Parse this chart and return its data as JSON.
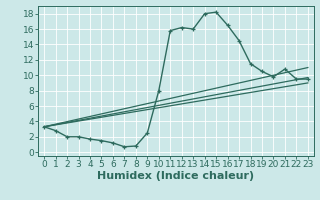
{
  "xlabel": "Humidex (Indice chaleur)",
  "ylabel": "",
  "bg_color": "#cce8e8",
  "line_color": "#2e6b5e",
  "xlim": [
    -0.5,
    23.5
  ],
  "ylim": [
    -0.5,
    19.0
  ],
  "xticks": [
    0,
    1,
    2,
    3,
    4,
    5,
    6,
    7,
    8,
    9,
    10,
    11,
    12,
    13,
    14,
    15,
    16,
    17,
    18,
    19,
    20,
    21,
    22,
    23
  ],
  "yticks": [
    0,
    2,
    4,
    6,
    8,
    10,
    12,
    14,
    16,
    18
  ],
  "curve1_x": [
    0,
    1,
    2,
    3,
    4,
    5,
    6,
    7,
    8,
    9,
    10,
    11,
    12,
    13,
    14,
    15,
    16,
    17,
    18,
    19,
    20,
    21,
    22,
    23
  ],
  "curve1_y": [
    3.3,
    2.8,
    2.0,
    2.0,
    1.7,
    1.5,
    1.2,
    0.7,
    0.8,
    2.5,
    8.0,
    15.8,
    16.2,
    16.0,
    18.0,
    18.2,
    16.5,
    14.5,
    11.5,
    10.5,
    9.8,
    10.8,
    9.5,
    9.5
  ],
  "line2_x": [
    0,
    23
  ],
  "line2_y": [
    3.3,
    11.0
  ],
  "line3_x": [
    0,
    23
  ],
  "line3_y": [
    3.3,
    9.7
  ],
  "line4_x": [
    0,
    23
  ],
  "line4_y": [
    3.3,
    9.0
  ],
  "grid_color": "#ffffff",
  "xlabel_fontsize": 8,
  "tick_fontsize": 6.5
}
